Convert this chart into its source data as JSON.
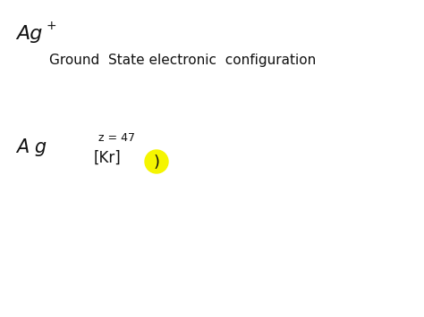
{
  "background_color": "#ffffff",
  "title_ion": "Ag",
  "title_superscript": "+",
  "subtitle": "Ground  State electronic  configuration",
  "element_label": "A g",
  "z_label": "z = 47",
  "config_label": "[Kr]",
  "paren_label": ")",
  "highlight_color": "#f5f500",
  "text_color": "#111111",
  "figsize": [
    4.74,
    3.55
  ],
  "dpi": 100
}
